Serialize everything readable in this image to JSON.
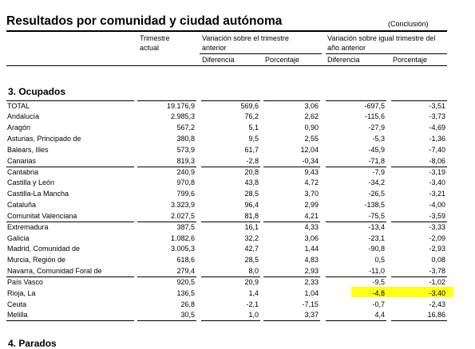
{
  "header": {
    "title": "Resultados por comunidad y ciudad autónoma",
    "note": "(Conclusión)"
  },
  "table": {
    "headers": {
      "current": "Trimestre actual",
      "prev_quarter": "Variación sobre el trimestre anterior",
      "prev_year": "Variación sobre igual trimestre del año anterior",
      "difference_1": "Diferencia",
      "percentage_1": "Porcentaje",
      "difference_2": "Diferencia",
      "percentage_2": "Porcentaje"
    },
    "section": "3. Ocupados",
    "rows": [
      [
        "TOTAL",
        "19.176,9",
        "569,6",
        "3,06",
        "-697,5",
        "-3,51"
      ],
      [
        "Andalucía",
        "2.985,3",
        "76,2",
        "2,62",
        "-115,6",
        "-3,73"
      ],
      [
        "Aragón",
        "567,2",
        "5,1",
        "0,90",
        "-27,9",
        "-4,69"
      ],
      [
        "Asturias, Principado de",
        "380,8",
        "9,5",
        "2,55",
        "-5,3",
        "-1,36"
      ],
      [
        "Balears, Illes",
        "573,9",
        "61,7",
        "12,04",
        "-45,9",
        "-7,40"
      ],
      [
        "Canarias",
        "819,3",
        "-2,8",
        "-0,34",
        "-71,8",
        "-8,06"
      ],
      [
        "Cantabria",
        "240,9",
        "20,8",
        "9,43",
        "-7,9",
        "-3,19"
      ],
      [
        "Castilla y León",
        "970,8",
        "43,8",
        "4,72",
        "-34,2",
        "-3,40"
      ],
      [
        "Castilla-La Mancha",
        "799,6",
        "28,5",
        "3,70",
        "-26,5",
        "-3,21"
      ],
      [
        "Cataluña",
        "3.323,9",
        "96,4",
        "2,99",
        "-138,5",
        "-4,00"
      ],
      [
        "Comunitat Valenciana",
        "2.027,5",
        "81,8",
        "4,21",
        "-75,5",
        "-3,59"
      ],
      [
        "Extremadura",
        "387,5",
        "16,1",
        "4,33",
        "-13,4",
        "-3,33"
      ],
      [
        "Galicia",
        "1.082,6",
        "32,2",
        "3,06",
        "-23,1",
        "-2,09"
      ],
      [
        "Madrid, Comunidad de",
        "3.005,3",
        "42,7",
        "1,44",
        "-90,8",
        "-2,93"
      ],
      [
        "Murcia, Región de",
        "618,6",
        "28,5",
        "4,83",
        "0,5",
        "0,08"
      ],
      [
        "Navarra, Comunidad Foral de",
        "279,4",
        "8,0",
        "2,93",
        "-11,0",
        "-3,78"
      ],
      [
        "País Vasco",
        "920,5",
        "20,9",
        "2,33",
        "-9,5",
        "-1,02"
      ],
      [
        "Rioja, La",
        "136,5",
        "1,4",
        "1,04",
        "-4,8",
        "-3,40"
      ],
      [
        "Ceuta",
        "26,8",
        "-2,1",
        "-7,15",
        "-0,7",
        "-2,43"
      ],
      [
        "Melilla",
        "30,5",
        "1,0",
        "3,37",
        "4,4",
        "16,86"
      ]
    ],
    "next_section": "4. Parados"
  }
}
